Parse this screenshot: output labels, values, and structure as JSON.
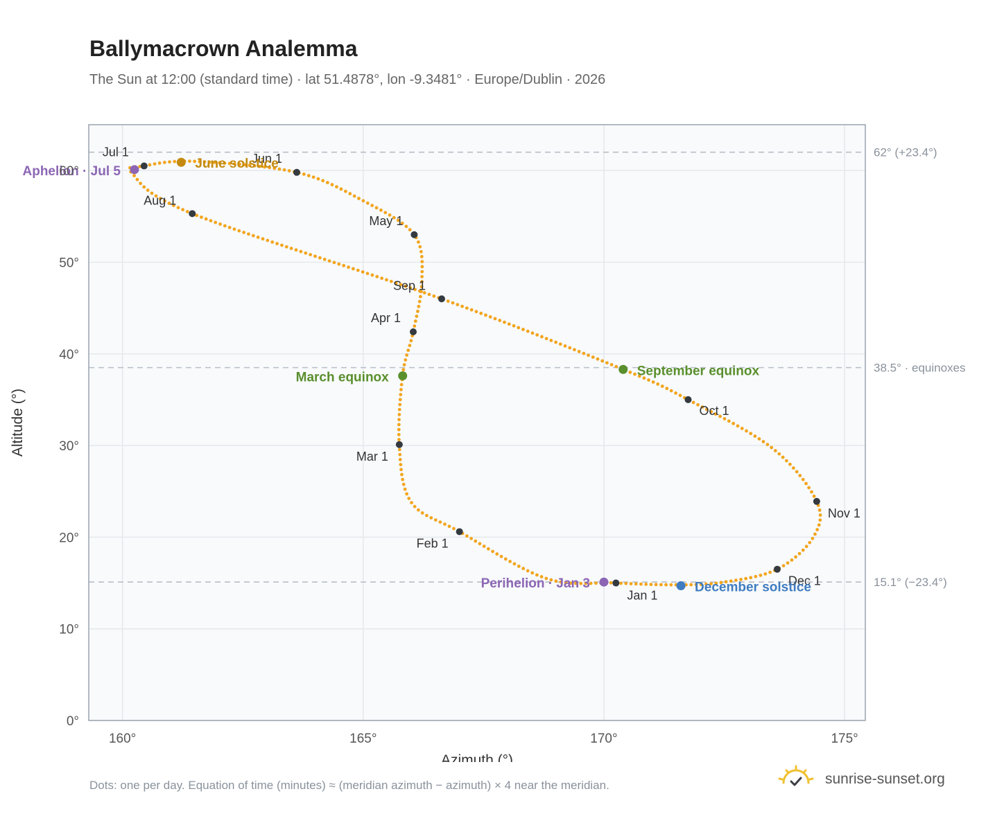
{
  "header": {
    "title": "Ballymacrown Analemma",
    "subtitle": "The Sun at 12:00 (standard time) · lat 51.4878°, lon -9.3481° · Europe/Dublin · 2026"
  },
  "footer": {
    "note": "Dots: one per day. Equation of time (minutes) ≈ (meridian azimuth − azimuth) × 4 near the meridian.",
    "brand": "sunrise-sunset.org"
  },
  "colors": {
    "curve": "#f2a51d",
    "month_dot": "#343a40",
    "aphelion": "#8c66b4",
    "june_solstice": "#c48a0f",
    "equinox": "#5a8f2d",
    "december_solstice": "#3f7cc0",
    "grid": "#e5e8ec",
    "plot_bg": "#f8fafc",
    "frame": "#9aa3ae",
    "ref_line": "#b8bec6",
    "logo": "#f0c02f"
  },
  "chart_data": {
    "type": "scatter",
    "title": "Ballymacrown Analemma",
    "xlabel": "Azimuth (°)",
    "ylabel": "Altitude (°)",
    "xlim": [
      159.3,
      175.43
    ],
    "ylim": [
      0,
      65
    ],
    "x_ticks": [
      {
        "value": 160,
        "label": "160°"
      },
      {
        "value": 165,
        "label": "165°"
      },
      {
        "value": 170,
        "label": "170°"
      },
      {
        "value": 175,
        "label": "175°"
      }
    ],
    "y_ticks": [
      {
        "value": 0,
        "label": "0°"
      },
      {
        "value": 10,
        "label": "10°"
      },
      {
        "value": 20,
        "label": "20°"
      },
      {
        "value": 30,
        "label": "30°"
      },
      {
        "value": 40,
        "label": "40°"
      },
      {
        "value": 50,
        "label": "50°"
      },
      {
        "value": 60,
        "label": "60°"
      }
    ],
    "grid": true,
    "reference_lines": [
      {
        "y": 62.0,
        "label": "62° (+23.4°)"
      },
      {
        "y": 38.5,
        "label": "38.5° · equinoxes"
      },
      {
        "y": 15.1,
        "label": "15.1° (−23.4°)"
      }
    ],
    "path_points": [
      [
        170.25,
        15.0
      ],
      [
        168.8,
        15.5
      ],
      [
        167.0,
        20.6
      ],
      [
        166.0,
        23.8
      ],
      [
        165.75,
        30.0
      ],
      [
        165.82,
        37.7
      ],
      [
        166.04,
        42.4
      ],
      [
        166.22,
        48.0
      ],
      [
        166.06,
        53.0
      ],
      [
        165.0,
        56.7
      ],
      [
        163.62,
        59.8
      ],
      [
        161.5,
        61.0
      ],
      [
        160.45,
        60.5
      ],
      [
        160.2,
        59.7
      ],
      [
        161.45,
        55.3
      ],
      [
        166.63,
        46.0
      ],
      [
        170.4,
        38.3
      ],
      [
        171.75,
        35.0
      ],
      [
        173.5,
        29.7
      ],
      [
        174.42,
        23.9
      ],
      [
        174.35,
        20.0
      ],
      [
        173.6,
        16.5
      ],
      [
        172.5,
        15.1
      ],
      [
        171.55,
        14.8
      ],
      [
        170.25,
        15.0
      ]
    ],
    "month_markers": [
      {
        "label": "Jan 1",
        "x": 170.25,
        "y": 15.0
      },
      {
        "label": "Feb 1",
        "x": 167.0,
        "y": 20.6
      },
      {
        "label": "Mar 1",
        "x": 165.75,
        "y": 30.1
      },
      {
        "label": "Apr 1",
        "x": 166.04,
        "y": 42.4
      },
      {
        "label": "May 1",
        "x": 166.06,
        "y": 53.0
      },
      {
        "label": "Jun 1",
        "x": 163.62,
        "y": 59.8
      },
      {
        "label": "Jul 1",
        "x": 160.45,
        "y": 60.5
      },
      {
        "label": "Aug 1",
        "x": 161.45,
        "y": 55.3
      },
      {
        "label": "Sep 1",
        "x": 166.63,
        "y": 46.0
      },
      {
        "label": "Oct 1",
        "x": 171.75,
        "y": 35.0
      },
      {
        "label": "Nov 1",
        "x": 174.42,
        "y": 23.9
      },
      {
        "label": "Dec 1",
        "x": 173.6,
        "y": 16.5
      }
    ],
    "events": [
      {
        "label": "Aphelion · Jul 5",
        "x": 160.25,
        "y": 60.1,
        "color_key": "aphelion"
      },
      {
        "label": "June solstice",
        "x": 161.22,
        "y": 60.9,
        "color_key": "june_solstice"
      },
      {
        "label": "March equinox",
        "x": 165.82,
        "y": 37.6,
        "color_key": "equinox"
      },
      {
        "label": "September equinox",
        "x": 170.4,
        "y": 38.3,
        "color_key": "equinox"
      },
      {
        "label": "Perihelion · Jan 3",
        "x": 170.0,
        "y": 15.1,
        "color_key": "aphelion"
      },
      {
        "label": "December solstice",
        "x": 171.6,
        "y": 14.7,
        "color_key": "december_solstice"
      }
    ]
  }
}
